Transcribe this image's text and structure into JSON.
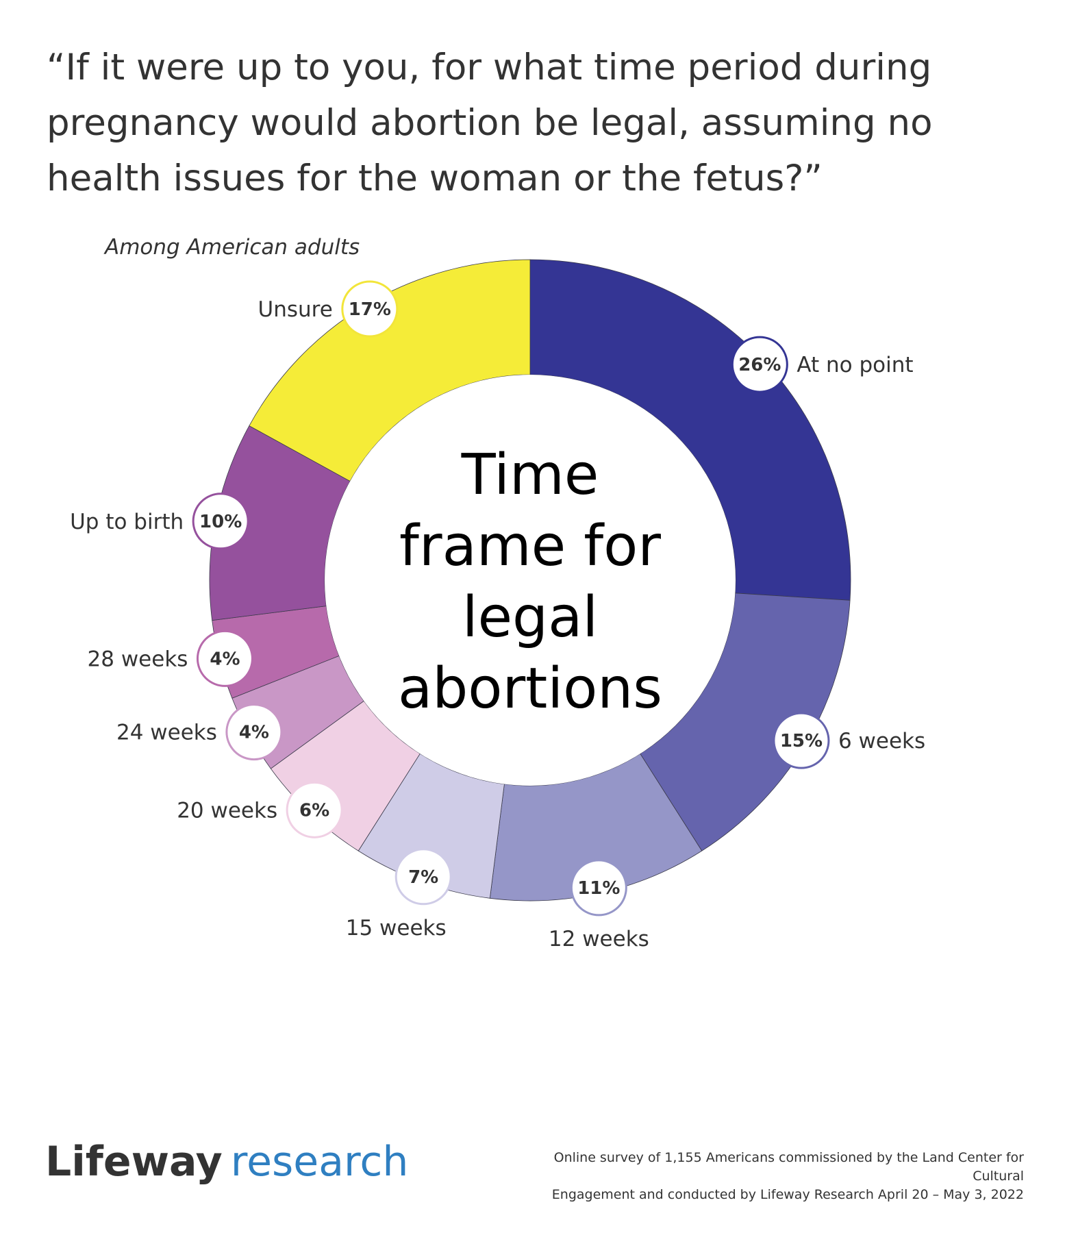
{
  "header": {
    "title": "“If it were up to you, for what time period during pregnancy would abortion be legal, assuming no health issues for the woman or the fetus?”",
    "subtitle": "Among American adults"
  },
  "chart_data": {
    "type": "pie",
    "variant": "donut",
    "center_text": [
      "Time",
      "frame for",
      "legal",
      "abortions"
    ],
    "slices": [
      {
        "label": "At no point",
        "value": 26,
        "value_label": "26%",
        "color": "#343594"
      },
      {
        "label": "6 weeks",
        "value": 15,
        "value_label": "15%",
        "color": "#6564ad"
      },
      {
        "label": "12 weeks",
        "value": 11,
        "value_label": "11%",
        "color": "#9596c8"
      },
      {
        "label": "15 weeks",
        "value": 7,
        "value_label": "7%",
        "color": "#cfcce7"
      },
      {
        "label": "20 weeks",
        "value": 6,
        "value_label": "6%",
        "color": "#f0d0e4"
      },
      {
        "label": "24 weeks",
        "value": 4,
        "value_label": "4%",
        "color": "#c997c6"
      },
      {
        "label": "28 weeks",
        "value": 4,
        "value_label": "4%",
        "color": "#b76aab"
      },
      {
        "label": "Up to birth",
        "value": 10,
        "value_label": "10%",
        "color": "#95519d"
      },
      {
        "label": "Unsure",
        "value": 17,
        "value_label": "17%",
        "color": "#f5ec38"
      }
    ]
  },
  "footer": {
    "brand_main": "Lifeway",
    "brand_sub": "research",
    "source_line1": "Online survey of 1,155 Americans commissioned by the Land Center for Cultural",
    "source_line2": "Engagement and conducted by Lifeway Research April 20 – May 3, 2022"
  }
}
